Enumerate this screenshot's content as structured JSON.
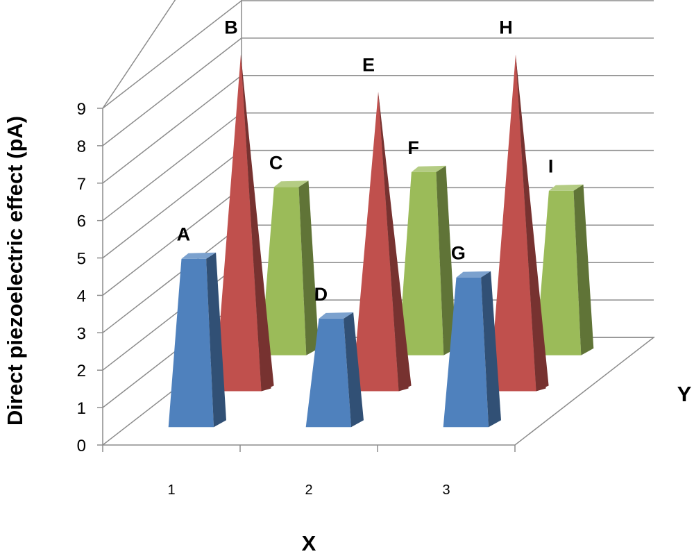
{
  "chart_data": {
    "type": "bar",
    "subtype": "3d-cone-column",
    "categories": [
      "1",
      "2",
      "3"
    ],
    "series": [
      {
        "color": "#4f81bd",
        "shape": "frustum",
        "values": [
          4.5,
          2.9,
          4.0
        ],
        "labels": [
          "A",
          "D",
          "G"
        ]
      },
      {
        "color": "#c0504d",
        "shape": "cone",
        "values": [
          9.0,
          8.0,
          9.0
        ],
        "labels": [
          "B",
          "E",
          "H"
        ]
      },
      {
        "color": "#9bbb59",
        "shape": "frustum",
        "values": [
          4.5,
          4.9,
          4.4
        ],
        "labels": [
          "C",
          "F",
          "I"
        ]
      }
    ],
    "xlabel": "X",
    "ylabel": "Direct piezoelectric effect (pA)",
    "zlabel": "Y",
    "ylim": [
      0,
      9
    ],
    "yticks": [
      0,
      1,
      2,
      3,
      4,
      5,
      6,
      7,
      8,
      9
    ],
    "grid": true,
    "legend": "none"
  }
}
